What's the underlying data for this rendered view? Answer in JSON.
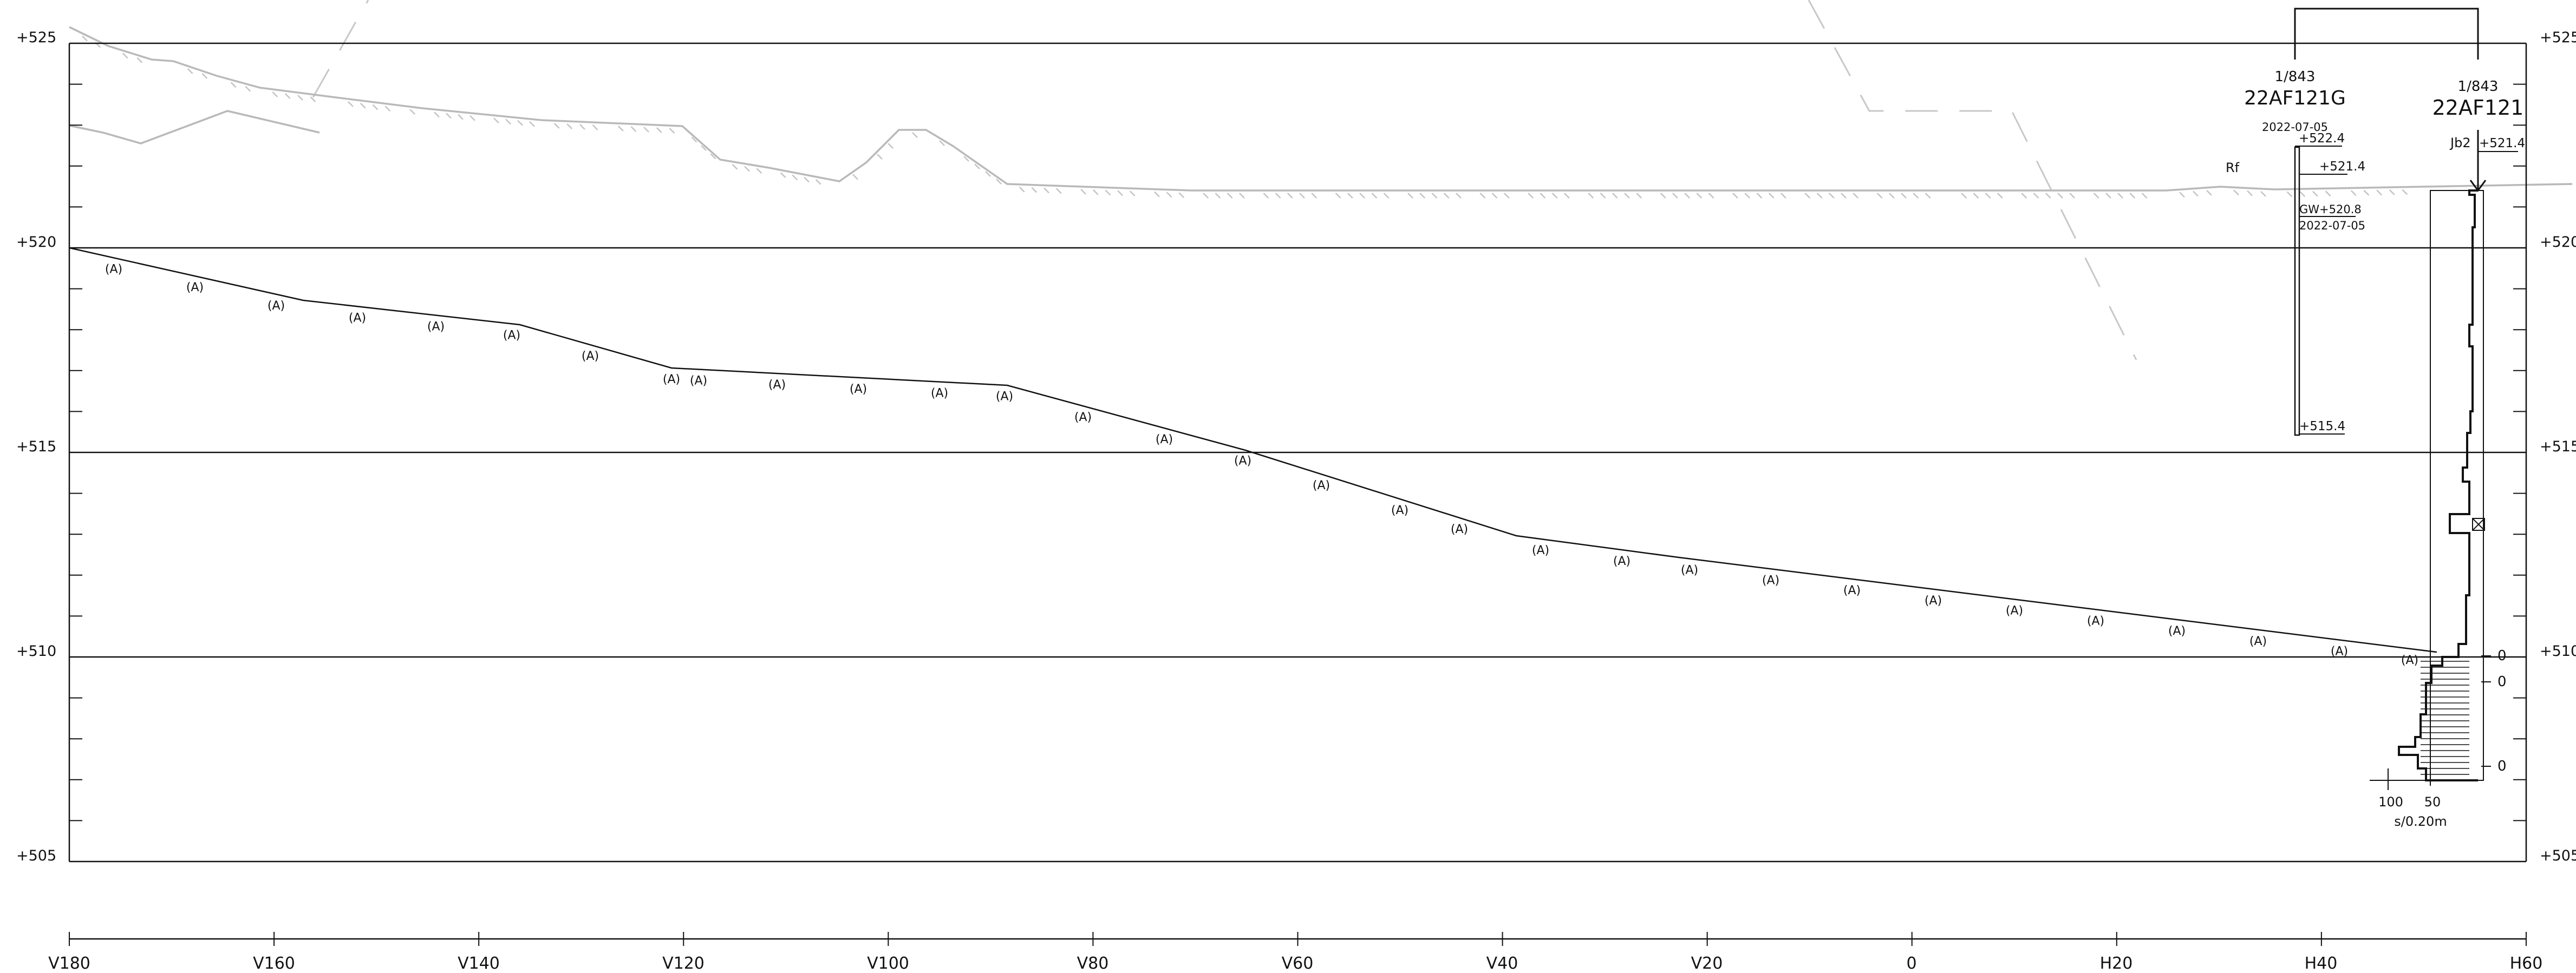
{
  "elevation_labels": [
    "+525",
    "+520",
    "+515",
    "+510",
    "+505"
  ],
  "station_labels": [
    "V180",
    "V160",
    "V140",
    "V120",
    "V100",
    "V80",
    "V60",
    "V40",
    "V20",
    "0",
    "H20",
    "H40",
    "H60"
  ],
  "surface_marker": "(A)",
  "borehole_main": {
    "scale": "1/843",
    "id": "22AF121",
    "code": "Jb2",
    "top_level": "+521.4",
    "axis_labels": [
      "100",
      "50"
    ],
    "axis_unit": "s/0.20m",
    "zero_labels": [
      "0",
      "0",
      "0"
    ]
  },
  "borehole_gw": {
    "scale": "1/843",
    "id": "22AF121G",
    "date_top": "2022-07-05",
    "top_level": "+522.4",
    "ground_code": "Rf",
    "ground_level": "+521.4",
    "gw_level": "GW+520.8",
    "gw_date": "2022-07-05",
    "bottom_level": "+515.4"
  },
  "colors": {
    "line": "#111111",
    "terrain": "#b9b9b9",
    "dashed": "#c8c8c8"
  }
}
